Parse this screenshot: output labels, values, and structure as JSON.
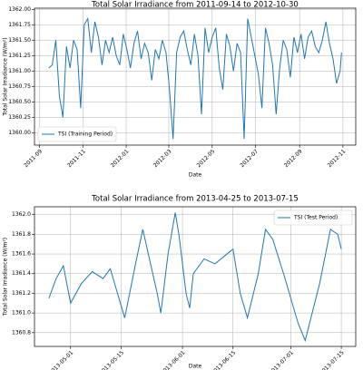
{
  "chart_data": [
    {
      "type": "line",
      "title": "Total Solar Irradiance from 2011-09-14 to 2012-10-30",
      "xlabel": "Date",
      "ylabel": "Total Solar Irradiance (W/m²)",
      "x": [
        "2011-09-14",
        "2011-09-19",
        "2011-09-24",
        "2011-09-29",
        "2011-10-04",
        "2011-10-09",
        "2011-10-14",
        "2011-10-19",
        "2011-10-24",
        "2011-10-29",
        "2011-11-03",
        "2011-11-08",
        "2011-11-13",
        "2011-11-18",
        "2011-11-23",
        "2011-11-28",
        "2011-12-03",
        "2011-12-08",
        "2011-12-13",
        "2011-12-18",
        "2011-12-23",
        "2011-12-28",
        "2012-01-02",
        "2012-01-07",
        "2012-01-12",
        "2012-01-17",
        "2012-01-22",
        "2012-01-27",
        "2012-02-01",
        "2012-02-06",
        "2012-02-11",
        "2012-02-16",
        "2012-02-21",
        "2012-02-26",
        "2012-03-02",
        "2012-03-07",
        "2012-03-12",
        "2012-03-17",
        "2012-03-22",
        "2012-03-27",
        "2012-04-01",
        "2012-04-06",
        "2012-04-11",
        "2012-04-16",
        "2012-04-21",
        "2012-04-26",
        "2012-05-01",
        "2012-05-06",
        "2012-05-11",
        "2012-05-16",
        "2012-05-21",
        "2012-05-26",
        "2012-05-31",
        "2012-06-05",
        "2012-06-10",
        "2012-06-15",
        "2012-06-20",
        "2012-06-25",
        "2012-06-30",
        "2012-07-05",
        "2012-07-10",
        "2012-07-15",
        "2012-07-20",
        "2012-07-25",
        "2012-07-30",
        "2012-08-04",
        "2012-08-09",
        "2012-08-14",
        "2012-08-19",
        "2012-08-24",
        "2012-08-29",
        "2012-09-03",
        "2012-09-08",
        "2012-09-13",
        "2012-09-18",
        "2012-09-23",
        "2012-09-28",
        "2012-10-03",
        "2012-10-08",
        "2012-10-13",
        "2012-10-18",
        "2012-10-23",
        "2012-10-28",
        "2012-10-30"
      ],
      "series": [
        {
          "name": "TSI (Training Period)",
          "color": "#1f77b4",
          "values": [
            1361.05,
            1361.1,
            1361.5,
            1360.6,
            1360.25,
            1361.4,
            1361.05,
            1361.5,
            1361.35,
            1360.4,
            1361.75,
            1361.85,
            1361.3,
            1361.8,
            1361.55,
            1361.1,
            1361.5,
            1361.3,
            1361.55,
            1361.25,
            1361.1,
            1361.6,
            1361.35,
            1361.05,
            1361.45,
            1361.65,
            1361.2,
            1361.45,
            1361.3,
            1360.85,
            1361.35,
            1361.2,
            1361.5,
            1361.3,
            1360.7,
            1359.9,
            1361.3,
            1361.55,
            1361.65,
            1361.35,
            1361.1,
            1361.6,
            1361.25,
            1360.3,
            1361.7,
            1361.3,
            1361.55,
            1361.7,
            1361.05,
            1360.7,
            1361.6,
            1361.4,
            1361.0,
            1361.45,
            1361.3,
            1359.9,
            1361.85,
            1361.55,
            1361.25,
            1360.95,
            1360.4,
            1361.7,
            1361.45,
            1361.1,
            1360.3,
            1361.05,
            1361.5,
            1361.35,
            1360.9,
            1361.55,
            1361.3,
            1361.6,
            1361.2,
            1361.55,
            1361.65,
            1361.4,
            1361.3,
            1361.5,
            1361.8,
            1361.45,
            1361.2,
            1360.8,
            1361.0,
            1361.3
          ]
        }
      ],
      "xlim": [
        "2011-08-25",
        "2012-11-19"
      ],
      "xticks": [
        {
          "value": "2011-09-01",
          "label": "2011-09"
        },
        {
          "value": "2011-11-01",
          "label": "2011-11"
        },
        {
          "value": "2012-01-01",
          "label": "2012-01"
        },
        {
          "value": "2012-03-01",
          "label": "2012-03"
        },
        {
          "value": "2012-05-01",
          "label": "2012-05"
        },
        {
          "value": "2012-07-01",
          "label": "2012-07"
        },
        {
          "value": "2012-09-01",
          "label": "2012-09"
        },
        {
          "value": "2012-11-01",
          "label": "2012-11"
        }
      ],
      "ylim": [
        1359.8,
        1362.02
      ],
      "yticks": [
        {
          "value": 1360,
          "label": "1360.00"
        },
        {
          "value": 1360.25,
          "label": "1360.25"
        },
        {
          "value": 1360.5,
          "label": "1360.50"
        },
        {
          "value": 1360.75,
          "label": "1360.75"
        },
        {
          "value": 1361,
          "label": "1361.00"
        },
        {
          "value": 1361.25,
          "label": "1361.25"
        },
        {
          "value": 1361.5,
          "label": "1361.50"
        },
        {
          "value": 1361.75,
          "label": "1361.75"
        },
        {
          "value": 1362,
          "label": "1362.00"
        }
      ],
      "grid": true,
      "legend": "lower left"
    },
    {
      "type": "line",
      "title": "Total Solar Irradiance from 2013-04-25 to 2013-07-15",
      "xlabel": "Date",
      "ylabel": "Total Solar Irradiance (W/m²)",
      "x": [
        "2013-04-25",
        "2013-04-27",
        "2013-04-29",
        "2013-05-01",
        "2013-05-04",
        "2013-05-07",
        "2013-05-10",
        "2013-05-12",
        "2013-05-16",
        "2013-05-19",
        "2013-05-21",
        "2013-05-25",
        "2013-05-26",
        "2013-05-28",
        "2013-05-30",
        "2013-05-31",
        "2013-06-02",
        "2013-06-03",
        "2013-06-04",
        "2013-06-07",
        "2013-06-10",
        "2013-06-15",
        "2013-06-17",
        "2013-06-19",
        "2013-06-22",
        "2013-06-24",
        "2013-06-26",
        "2013-06-29",
        "2013-07-03",
        "2013-07-05",
        "2013-07-09",
        "2013-07-12",
        "2013-07-14",
        "2013-07-15"
      ],
      "series": [
        {
          "name": "TSI (Test Period)",
          "color": "#1f77b4",
          "values": [
            1361.15,
            1361.35,
            1361.48,
            1361.1,
            1361.3,
            1361.42,
            1361.35,
            1361.45,
            1360.95,
            1361.5,
            1361.85,
            1361.2,
            1361.0,
            1361.6,
            1362.02,
            1361.8,
            1361.2,
            1361.05,
            1361.4,
            1361.55,
            1361.5,
            1361.65,
            1361.2,
            1360.95,
            1361.4,
            1361.85,
            1361.75,
            1361.4,
            1360.9,
            1360.72,
            1361.3,
            1361.85,
            1361.8,
            1361.65
          ]
        }
      ],
      "xlim": [
        "2013-04-21",
        "2013-07-19"
      ],
      "xticks": [
        "2013-05-01",
        "2013-05-15",
        "2013-06-01",
        "2013-06-15",
        "2013-07-01",
        "2013-07-15"
      ],
      "ylim": [
        1360.66,
        1362.08
      ],
      "yticks": [
        1360.8,
        {
          "value": 1361,
          "label": "1361.0"
        },
        1361.2,
        1361.4,
        1361.6,
        1361.8,
        {
          "value": 1362,
          "label": "1362.0"
        }
      ],
      "grid": true,
      "legend": "upper right"
    }
  ]
}
